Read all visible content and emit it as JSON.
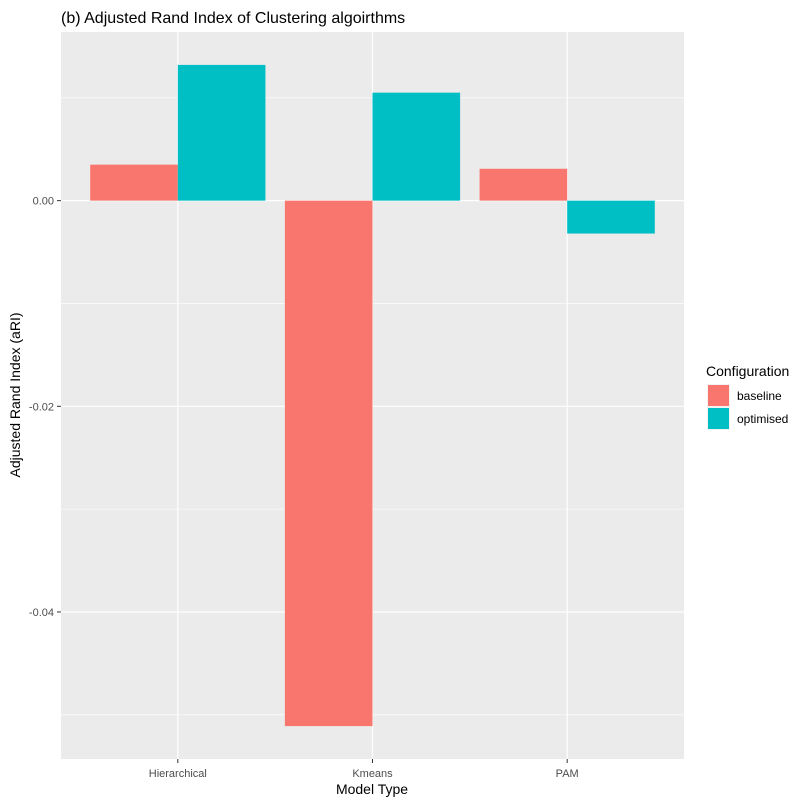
{
  "chart_data": {
    "type": "bar",
    "title": "(b) Adjusted Rand Index of Clustering algoirthms",
    "xlabel": "Model Type",
    "ylabel": "Adjusted Rand Index (aRI)",
    "categories": [
      "Hierarchical",
      "Kmeans",
      "PAM"
    ],
    "series": [
      {
        "name": "baseline",
        "color": "#F8766D",
        "values": [
          0.0035,
          -0.0511,
          0.0031
        ]
      },
      {
        "name": "optimised",
        "color": "#00BFC4",
        "values": [
          0.0132,
          0.0105,
          -0.0032
        ]
      }
    ],
    "ylim": [
      -0.0543,
      0.0164
    ],
    "yticks": [
      {
        "value": 0.0,
        "label": "0.00"
      },
      {
        "value": -0.02,
        "label": "-0.02"
      },
      {
        "value": -0.04,
        "label": "-0.04"
      }
    ],
    "legend": {
      "title": "Configuration",
      "position": "right"
    },
    "grid": true,
    "panel_background": "#EBEBEB",
    "grid_color": "#FFFFFF"
  }
}
